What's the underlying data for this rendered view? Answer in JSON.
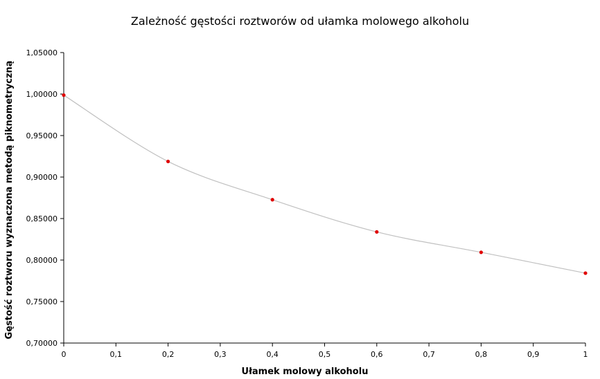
{
  "chart_data": {
    "type": "scatter",
    "title": "Zależność gęstości roztworów od ułamka molowego alkoholu",
    "xlabel": "Ułamek molowy alkoholu",
    "ylabel": "Gęstość roztworu wyznaczona metodą piknometryczną",
    "xlim": [
      0,
      1
    ],
    "ylim": [
      0.7,
      1.05
    ],
    "x_ticks": [
      "0",
      "0,1",
      "0,2",
      "0,3",
      "0,4",
      "0,5",
      "0,6",
      "0,7",
      "0,8",
      "0,9",
      "1"
    ],
    "y_ticks": [
      "0,70000",
      "0,75000",
      "0,80000",
      "0,85000",
      "0,90000",
      "0,95000",
      "1,00000",
      "1,05000"
    ],
    "grid": false,
    "legend": "none",
    "series": [
      {
        "points": [
          {
            "x": 0.0,
            "y": 0.9987
          },
          {
            "x": 0.2,
            "y": 0.9188
          },
          {
            "x": 0.4,
            "y": 0.8727
          },
          {
            "x": 0.6,
            "y": 0.8339
          },
          {
            "x": 0.8,
            "y": 0.8093
          },
          {
            "x": 1.0,
            "y": 0.7842
          }
        ],
        "marker_color": "#e00000",
        "trendline_color": "#c0c0c0"
      }
    ]
  }
}
